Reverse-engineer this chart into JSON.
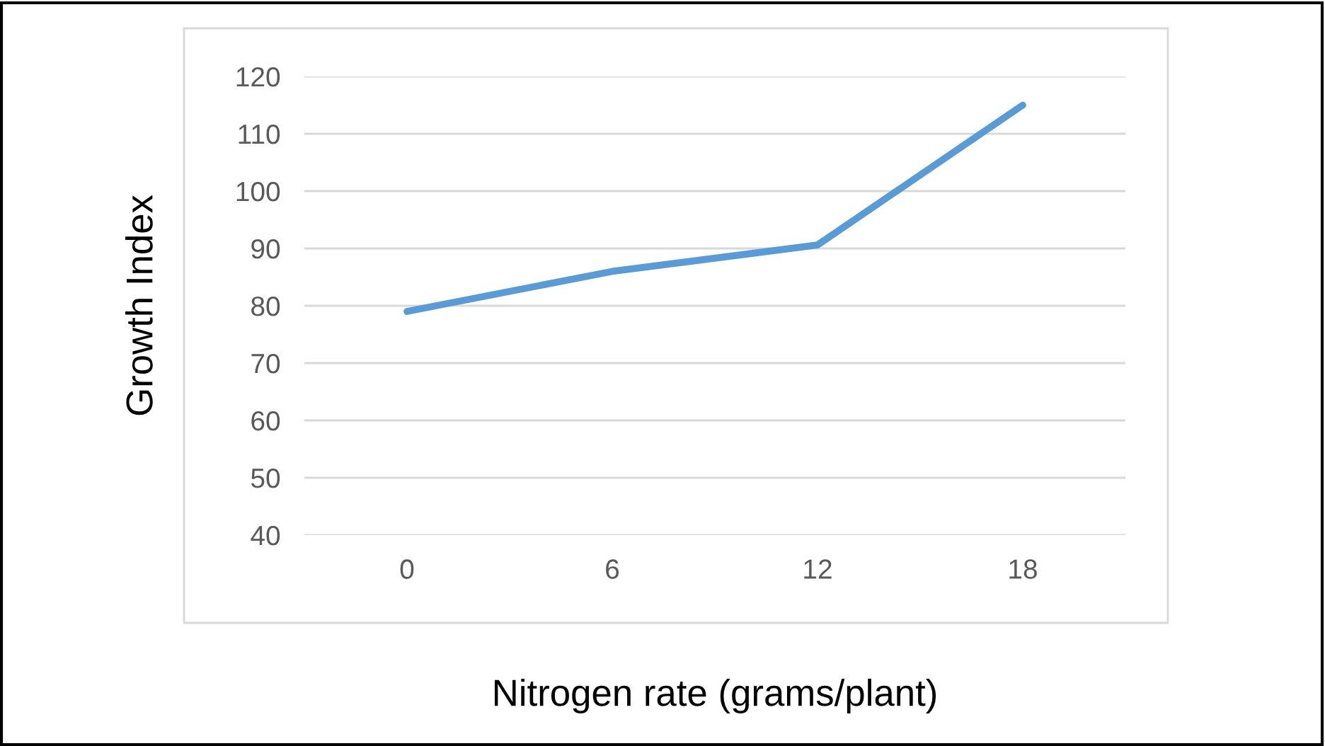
{
  "chart_data": {
    "type": "line",
    "xlabel": "Nitrogen rate (grams/plant)",
    "ylabel": "Growth Index",
    "categories": [
      "0",
      "6",
      "12",
      "18"
    ],
    "series": [
      {
        "color": "#5b9bd5",
        "values": [
          79,
          86,
          90.6,
          115
        ]
      }
    ],
    "ylim": [
      40,
      120
    ],
    "yticks": [
      40,
      50,
      60,
      70,
      80,
      90,
      100,
      110,
      120
    ],
    "grid": "y"
  }
}
